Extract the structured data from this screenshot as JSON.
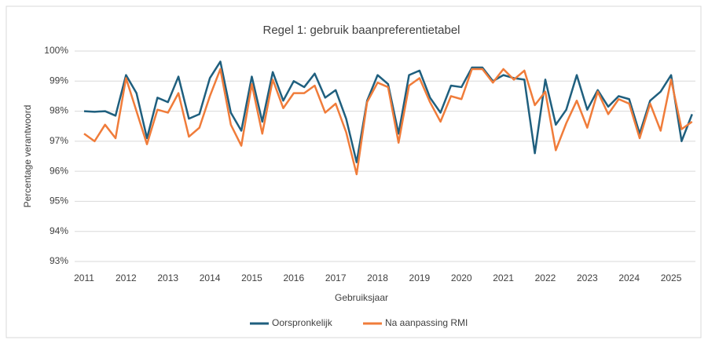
{
  "chart_data": {
    "type": "line",
    "title": "Regel 1: gebruik baanpreferentietabel",
    "x_label": "Gebruiksjaar",
    "y_label": "Percentage verantwoord",
    "x": [
      2011,
      2011.25,
      2011.5,
      2011.75,
      2012,
      2012.25,
      2012.5,
      2012.75,
      2013,
      2013.25,
      2013.5,
      2013.75,
      2014,
      2014.25,
      2014.5,
      2014.75,
      2015,
      2015.25,
      2015.5,
      2015.75,
      2016,
      2016.25,
      2016.5,
      2016.75,
      2017,
      2017.25,
      2017.5,
      2017.75,
      2018,
      2018.25,
      2018.5,
      2018.75,
      2019,
      2019.25,
      2019.5,
      2019.75,
      2020,
      2020.25,
      2020.5,
      2020.75,
      2021,
      2021.25,
      2021.5,
      2021.75,
      2022,
      2022.25,
      2022.5,
      2022.75,
      2023,
      2023.25,
      2023.5,
      2023.75,
      2024,
      2024.25,
      2024.5,
      2024.75,
      2025,
      2025.25,
      2025.5
    ],
    "series": [
      {
        "name": "Oorspronkelijk",
        "color": "#1f5f7e",
        "values": [
          98.0,
          97.98,
          98.0,
          97.85,
          99.2,
          98.6,
          97.1,
          98.45,
          98.3,
          99.15,
          97.75,
          97.9,
          99.1,
          99.65,
          97.95,
          97.35,
          99.15,
          97.65,
          99.3,
          98.35,
          99.0,
          98.8,
          99.25,
          98.45,
          98.7,
          97.75,
          96.3,
          98.35,
          99.2,
          98.9,
          97.25,
          99.2,
          99.35,
          98.45,
          97.95,
          98.85,
          98.8,
          99.45,
          99.45,
          99.0,
          99.2,
          99.1,
          99.05,
          96.6,
          99.05,
          97.55,
          98.05,
          99.2,
          98.05,
          98.7,
          98.15,
          98.5,
          98.4,
          97.25,
          98.35,
          98.65,
          99.2,
          97.0,
          97.9
        ]
      },
      {
        "name": "Na aanpassing RMI",
        "color": "#f07c3a",
        "values": [
          97.25,
          97.0,
          97.55,
          97.1,
          99.1,
          98.0,
          96.9,
          98.05,
          97.95,
          98.6,
          97.15,
          97.45,
          98.5,
          99.4,
          97.55,
          96.85,
          98.9,
          97.25,
          99.05,
          98.1,
          98.6,
          98.6,
          98.85,
          97.95,
          98.25,
          97.3,
          95.9,
          98.3,
          98.95,
          98.8,
          96.95,
          98.85,
          99.1,
          98.3,
          97.65,
          98.5,
          98.4,
          99.4,
          99.4,
          98.95,
          99.4,
          99.05,
          99.35,
          98.2,
          98.65,
          96.7,
          97.6,
          98.35,
          97.45,
          98.65,
          97.9,
          98.4,
          98.25,
          97.1,
          98.25,
          97.35,
          99.05,
          97.4,
          97.65
        ]
      }
    ],
    "xlim": [
      2010.775,
      2025.58
    ],
    "xticks": [
      2011,
      2012,
      2013,
      2014,
      2015,
      2016,
      2017,
      2018,
      2019,
      2020,
      2021,
      2022,
      2023,
      2024,
      2025
    ],
    "ylim": [
      93,
      100
    ],
    "yticks": [
      {
        "value": 93,
        "label": "93%"
      },
      {
        "value": 94,
        "label": "94%"
      },
      {
        "value": 95,
        "label": "95%"
      },
      {
        "value": 96,
        "label": "96%"
      },
      {
        "value": 97,
        "label": "97%"
      },
      {
        "value": 98,
        "label": "98%"
      },
      {
        "value": 99,
        "label": "99%"
      },
      {
        "value": 100,
        "label": "100%"
      }
    ],
    "grid": true,
    "legend": "bottom"
  }
}
